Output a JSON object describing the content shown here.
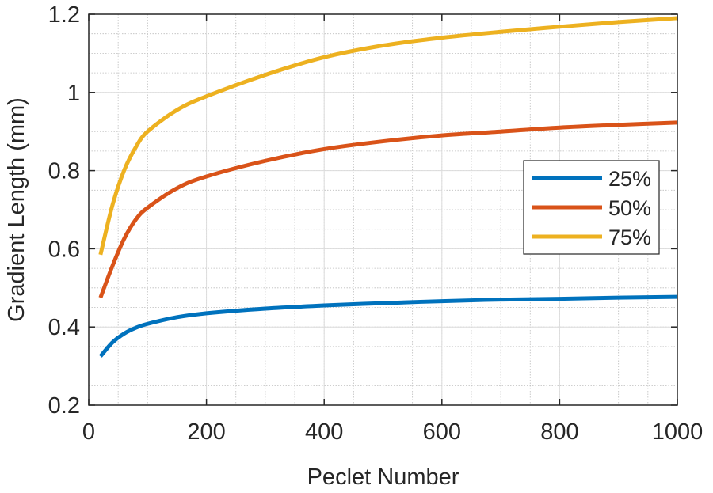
{
  "chart_data": {
    "type": "line",
    "title": "",
    "xlabel": "Peclet Number",
    "ylabel": "Gradient Length (mm)",
    "xlim": [
      0,
      1000
    ],
    "ylim": [
      0.2,
      1.2
    ],
    "x_ticks": [
      0,
      200,
      400,
      600,
      800,
      1000
    ],
    "y_ticks": [
      0.2,
      0.4,
      0.6,
      0.8,
      1.0,
      1.2
    ],
    "x_tick_labels": [
      "0",
      "200",
      "400",
      "600",
      "800",
      "1000"
    ],
    "y_tick_labels": [
      "0.2",
      "0.4",
      "0.6",
      "0.8",
      "1",
      "1.2"
    ],
    "grid": true,
    "minor_grid": true,
    "legend_position": "right-middle",
    "x": [
      20,
      40,
      60,
      80,
      100,
      150,
      200,
      300,
      400,
      500,
      600,
      700,
      800,
      900,
      1000
    ],
    "series": [
      {
        "name": "25%",
        "color": "#0072BD",
        "values": [
          0.325,
          0.36,
          0.383,
          0.398,
          0.408,
          0.425,
          0.435,
          0.447,
          0.455,
          0.461,
          0.466,
          0.47,
          0.472,
          0.475,
          0.477
        ]
      },
      {
        "name": "50%",
        "color": "#D95319",
        "values": [
          0.475,
          0.555,
          0.625,
          0.675,
          0.705,
          0.755,
          0.785,
          0.825,
          0.855,
          0.875,
          0.89,
          0.9,
          0.91,
          0.917,
          0.923
        ]
      },
      {
        "name": "75%",
        "color": "#EDB120",
        "values": [
          0.585,
          0.71,
          0.8,
          0.86,
          0.9,
          0.955,
          0.99,
          1.045,
          1.09,
          1.12,
          1.14,
          1.155,
          1.168,
          1.18,
          1.19
        ]
      }
    ]
  }
}
